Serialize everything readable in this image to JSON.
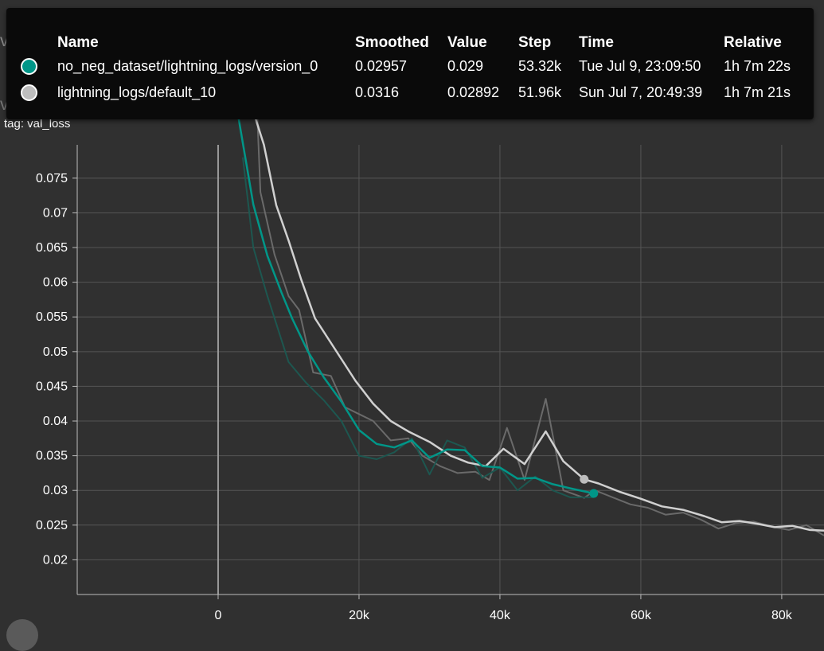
{
  "chart": {
    "title": "val_loss",
    "tag": "tag: val_loss"
  },
  "tooltip": {
    "headers": {
      "name": "Name",
      "smoothed": "Smoothed",
      "value": "Value",
      "step": "Step",
      "time": "Time",
      "relative": "Relative"
    },
    "rows": [
      {
        "color": "#009688",
        "name": "no_neg_dataset/lightning_logs/version_0",
        "smoothed": "0.02957",
        "value": "0.029",
        "step": "53.32k",
        "time": "Tue Jul 9, 23:09:50",
        "relative": "1h 7m 22s"
      },
      {
        "color": "#bdbdbd",
        "name": "lightning_logs/default_10",
        "smoothed": "0.0316",
        "value": "0.02892",
        "step": "51.96k",
        "time": "Sun Jul 7, 20:49:39",
        "relative": "1h 7m 21s"
      }
    ]
  },
  "chart_data": {
    "type": "line",
    "xlim": [
      -20000,
      86000
    ],
    "ylim": [
      0.015,
      0.0798
    ],
    "grid": true,
    "x_ticks": [
      0,
      20000,
      40000,
      60000,
      80000
    ],
    "x_tick_labels": [
      "0",
      "20k",
      "40k",
      "60k",
      "80k"
    ],
    "y_ticks": [
      0.02,
      0.025,
      0.03,
      0.035,
      0.04,
      0.045,
      0.05,
      0.055,
      0.06,
      0.065,
      0.07,
      0.075
    ],
    "y_tick_labels": [
      "0.02",
      "0.025",
      "0.03",
      "0.035",
      "0.04",
      "0.045",
      "0.05",
      "0.055",
      "0.06",
      "0.065",
      "0.07",
      "0.075"
    ],
    "series": [
      {
        "name": "lightning_logs/default_10",
        "kind": "raw",
        "color": "#6a6a6a",
        "x": [
          5000,
          6000,
          8000,
          10000,
          11500,
          13500,
          16000,
          18000,
          20000,
          22000,
          24500,
          27000,
          29000,
          31500,
          34000,
          36500,
          38500,
          41000,
          43500,
          46500,
          49000,
          51960,
          53500,
          56000,
          58500,
          61000,
          63500,
          66000,
          68500,
          71000,
          73500,
          76000,
          78500,
          81000,
          83500,
          86000
        ],
        "y": [
          0.098,
          0.073,
          0.064,
          0.058,
          0.056,
          0.047,
          0.0465,
          0.042,
          0.041,
          0.04,
          0.0372,
          0.0375,
          0.035,
          0.0335,
          0.0325,
          0.0327,
          0.0315,
          0.039,
          0.0315,
          0.0432,
          0.03,
          0.02892,
          0.03,
          0.029,
          0.028,
          0.0275,
          0.0265,
          0.0268,
          0.0258,
          0.0245,
          0.0253,
          0.0255,
          0.0248,
          0.0243,
          0.025,
          0.0235
        ]
      },
      {
        "name": "no_neg_dataset/lightning_logs/version_0",
        "kind": "raw",
        "color": "#1d5750",
        "x": [
          3500,
          5000,
          7000,
          10000,
          12500,
          15000,
          17500,
          20000,
          22500,
          25000,
          27500,
          30000,
          32500,
          35000,
          37500,
          40000,
          42500,
          45000,
          47500,
          50000,
          53320
        ],
        "y": [
          0.078,
          0.065,
          0.058,
          0.0485,
          0.0455,
          0.043,
          0.04,
          0.035,
          0.0345,
          0.0355,
          0.0375,
          0.0323,
          0.0372,
          0.0362,
          0.0318,
          0.0333,
          0.03,
          0.032,
          0.03,
          0.029,
          0.029
        ]
      },
      {
        "name": "lightning_logs/default_10",
        "kind": "smoothed",
        "color": "#d0d0d0",
        "x": [
          3000,
          6500,
          8250,
          10000,
          11750,
          13750,
          16500,
          19500,
          22000,
          24500,
          27000,
          30000,
          33000,
          35500,
          38000,
          40500,
          43500,
          46500,
          49000,
          51960,
          54000,
          57000,
          60000,
          63000,
          66000,
          69000,
          71500,
          74000,
          76500,
          79000,
          81500,
          84000,
          86000
        ],
        "y": [
          0.091,
          0.0798,
          0.0711,
          0.066,
          0.0605,
          0.0548,
          0.0505,
          0.0458,
          0.0425,
          0.04,
          0.0385,
          0.037,
          0.035,
          0.034,
          0.0335,
          0.036,
          0.0338,
          0.0385,
          0.0342,
          0.0316,
          0.031,
          0.0298,
          0.0288,
          0.0277,
          0.0272,
          0.0263,
          0.0254,
          0.0256,
          0.0252,
          0.0247,
          0.0249,
          0.0243,
          0.0242
        ]
      },
      {
        "name": "no_neg_dataset/lightning_logs/version_0",
        "kind": "smoothed",
        "color": "#009688",
        "x": [
          2000,
          5000,
          7000,
          9000,
          10500,
          12750,
          15000,
          17500,
          20000,
          22500,
          25000,
          27500,
          30000,
          32500,
          35000,
          37500,
          40000,
          42500,
          45000,
          47500,
          50000,
          53320
        ],
        "y": [
          0.089,
          0.0712,
          0.0638,
          0.0585,
          0.0548,
          0.05,
          0.0463,
          0.0428,
          0.0387,
          0.0367,
          0.0362,
          0.0372,
          0.0347,
          0.0359,
          0.0358,
          0.0335,
          0.0333,
          0.0317,
          0.0318,
          0.0309,
          0.0303,
          0.02957
        ]
      }
    ],
    "markers": [
      {
        "x": 51960,
        "y": 0.0316,
        "color": "#bdbdbd"
      },
      {
        "x": 53320,
        "y": 0.02957,
        "color": "#009688"
      }
    ]
  }
}
